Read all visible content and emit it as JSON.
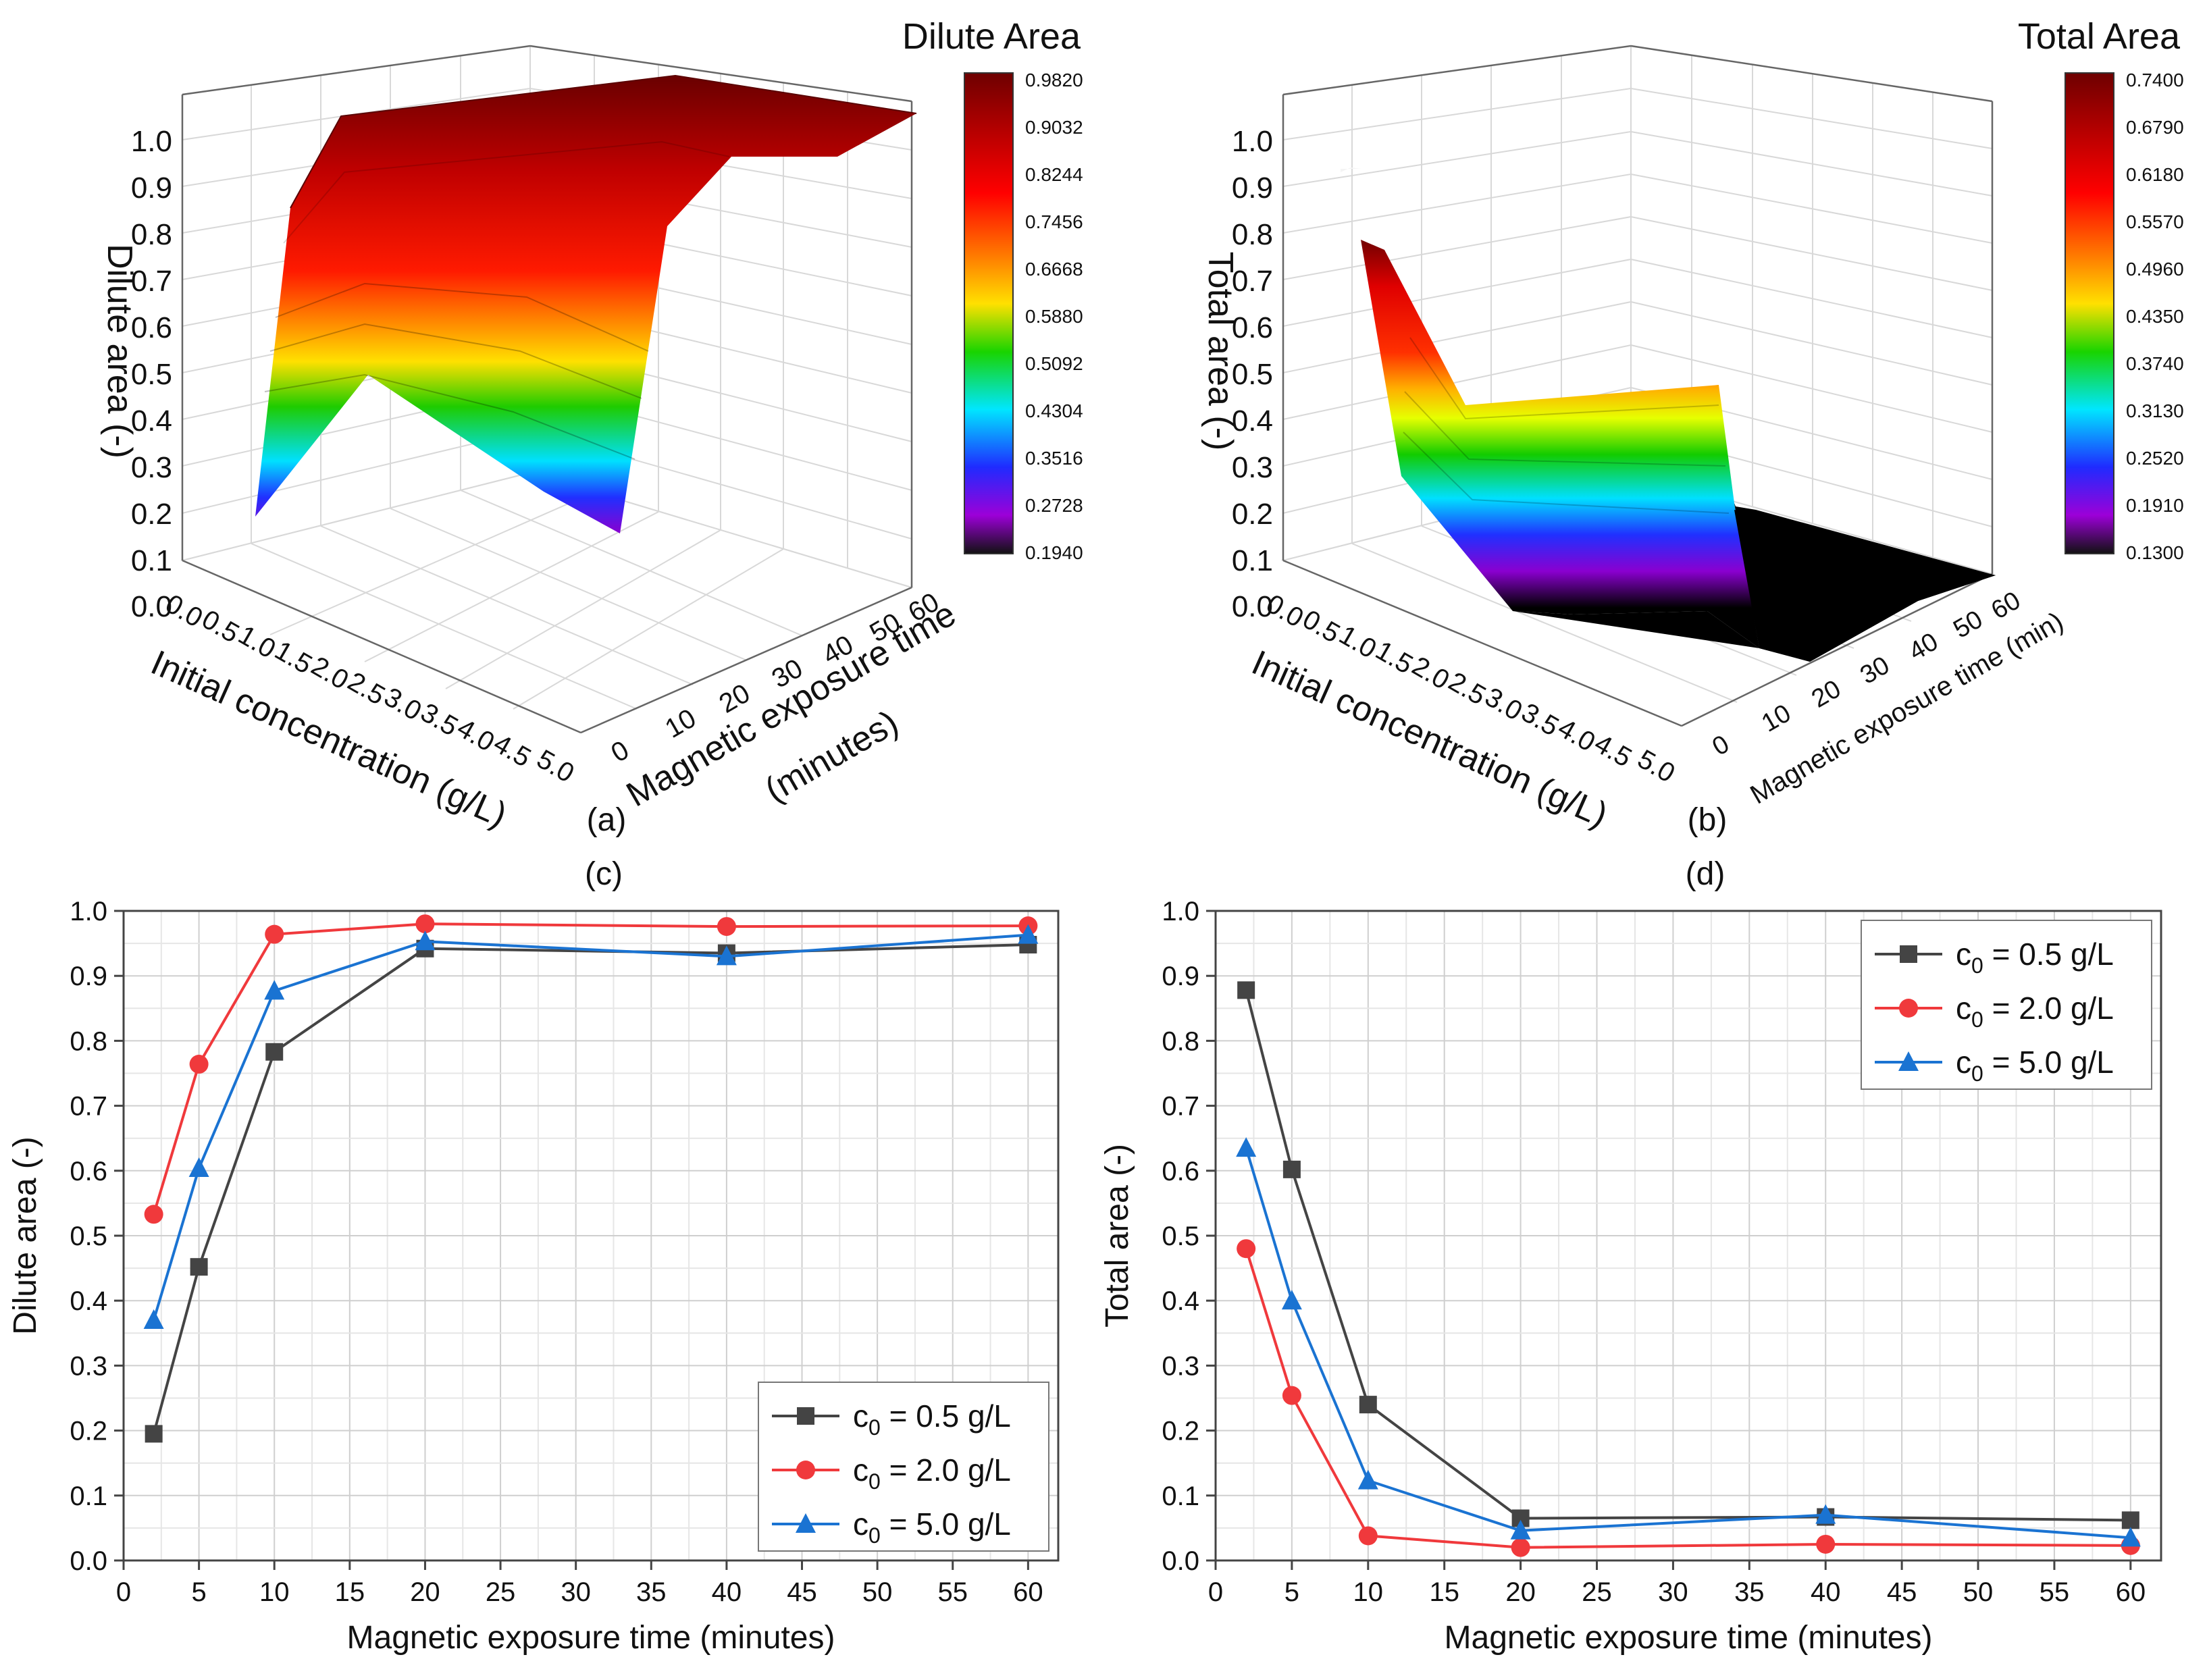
{
  "panels": {
    "a": {
      "chart_data": {
        "type": "surface",
        "title": "Dilute Area",
        "xlabel": "Initial concentration (g/L)",
        "ylabel": "Magnetic exposure time",
        "ylabel_line2": "(minutes)",
        "zlabel": "Dilute area (-)",
        "x_ticks": [
          "0.0",
          "0.5",
          "1.0",
          "1.5",
          "2.0",
          "2.5",
          "3.0",
          "3.5",
          "4.0",
          "4.5",
          "5.0"
        ],
        "y_ticks": [
          "0",
          "10",
          "20",
          "30",
          "40",
          "50",
          "60"
        ],
        "z_ticks": [
          "0.0",
          "0.1",
          "0.2",
          "0.3",
          "0.4",
          "0.5",
          "0.6",
          "0.7",
          "0.8",
          "0.9",
          "1.0"
        ],
        "colorbar_ticks": [
          "0.9820",
          "0.9032",
          "0.8244",
          "0.7456",
          "0.6668",
          "0.5880",
          "0.5092",
          "0.4304",
          "0.3516",
          "0.2728",
          "0.1940"
        ]
      },
      "tag": "(a)"
    },
    "b": {
      "chart_data": {
        "type": "surface",
        "title": "Total Area",
        "xlabel": "Initial concentration (g/L)",
        "ylabel": "Magnetic exposure time (min)",
        "zlabel": "Total area (-)",
        "x_ticks": [
          "0.0",
          "0.5",
          "1.0",
          "1.5",
          "2.0",
          "2.5",
          "3.0",
          "3.5",
          "4.0",
          "4.5",
          "5.0"
        ],
        "y_ticks": [
          "0",
          "10",
          "20",
          "30",
          "40",
          "50",
          "60"
        ],
        "z_ticks": [
          "0.0",
          "0.1",
          "0.2",
          "0.3",
          "0.4",
          "0.5",
          "0.6",
          "0.7",
          "0.8",
          "0.9",
          "1.0"
        ],
        "colorbar_ticks": [
          "0.7400",
          "0.6790",
          "0.6180",
          "0.5570",
          "0.4960",
          "0.4350",
          "0.3740",
          "0.3130",
          "0.2520",
          "0.1910",
          "0.1300"
        ]
      },
      "tag": "(b)"
    },
    "c": {
      "tag": "(c)",
      "chart_data": {
        "type": "line",
        "xlabel": "Magnetic exposure time (minutes)",
        "ylabel": "Dilute area (-)",
        "xlim": [
          0,
          62
        ],
        "ylim": [
          0,
          1.0
        ],
        "x_ticks": [
          0,
          5,
          10,
          15,
          20,
          25,
          30,
          35,
          40,
          45,
          50,
          55,
          60
        ],
        "y_ticks": [
          "0.0",
          "0.1",
          "0.2",
          "0.3",
          "0.4",
          "0.5",
          "0.6",
          "0.7",
          "0.8",
          "0.9",
          "1.0"
        ],
        "x": [
          2,
          5,
          10,
          20,
          40,
          60
        ],
        "legend_position": "bottom-right",
        "series": [
          {
            "name": "c0 = 0.5 g/L",
            "label_main": "c",
            "label_sub": "0",
            "label_rest": " = 0.5 g/L",
            "color": "#444444",
            "marker": "square",
            "values": [
              0.195,
              0.452,
              0.783,
              0.942,
              0.935,
              0.948
            ]
          },
          {
            "name": "c0 = 2.0 g/L",
            "label_main": "c",
            "label_sub": "0",
            "label_rest": " = 2.0 g/L",
            "color": "#f0393c",
            "marker": "circle",
            "values": [
              0.533,
              0.764,
              0.964,
              0.98,
              0.976,
              0.977
            ]
          },
          {
            "name": "c0 = 5.0 g/L",
            "label_main": "c",
            "label_sub": "0",
            "label_rest": " = 5.0 g/L",
            "color": "#1a73d2",
            "marker": "triangle",
            "values": [
              0.37,
              0.604,
              0.877,
              0.953,
              0.93,
              0.963
            ]
          }
        ]
      }
    },
    "d": {
      "tag": "(d)",
      "chart_data": {
        "type": "line",
        "xlabel": "Magnetic exposure time (minutes)",
        "ylabel": "Total area (-)",
        "xlim": [
          0,
          62
        ],
        "ylim": [
          0,
          1.0
        ],
        "x_ticks": [
          0,
          5,
          10,
          15,
          20,
          25,
          30,
          35,
          40,
          45,
          50,
          55,
          60
        ],
        "y_ticks": [
          "0.0",
          "0.1",
          "0.2",
          "0.3",
          "0.4",
          "0.5",
          "0.6",
          "0.7",
          "0.8",
          "0.9",
          "1.0"
        ],
        "x": [
          2,
          5,
          10,
          20,
          40,
          60
        ],
        "legend_position": "top-right",
        "series": [
          {
            "name": "c0 = 0.5 g/L",
            "label_main": "c",
            "label_sub": "0",
            "label_rest": " = 0.5 g/L",
            "color": "#444444",
            "marker": "square",
            "values": [
              0.878,
              0.602,
              0.24,
              0.065,
              0.067,
              0.062
            ]
          },
          {
            "name": "c0 = 2.0 g/L",
            "label_main": "c",
            "label_sub": "0",
            "label_rest": " = 2.0 g/L",
            "color": "#f0393c",
            "marker": "circle",
            "values": [
              0.48,
              0.254,
              0.038,
              0.02,
              0.025,
              0.023
            ]
          },
          {
            "name": "c0 = 5.0 g/L",
            "label_main": "c",
            "label_sub": "0",
            "label_rest": " = 5.0 g/L",
            "color": "#1a73d2",
            "marker": "triangle",
            "values": [
              0.635,
              0.4,
              0.123,
              0.046,
              0.07,
              0.035
            ]
          }
        ]
      }
    }
  }
}
